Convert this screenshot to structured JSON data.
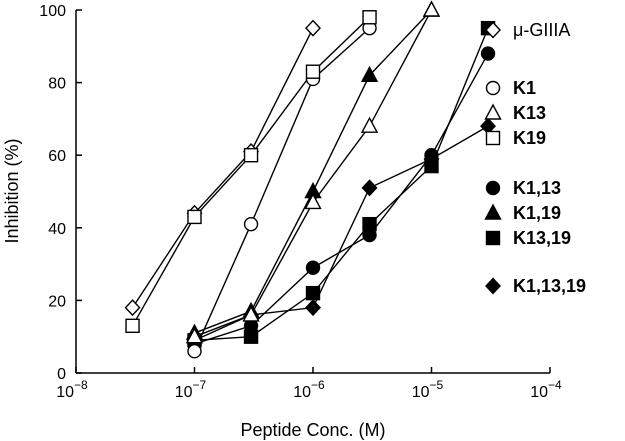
{
  "chart_data": {
    "type": "line",
    "xlabel": "Peptide Conc. (M)",
    "ylabel": "Inhibition (%)",
    "xscale": "log",
    "xlim": [
      1e-08,
      0.0001
    ],
    "ylim": [
      0,
      100
    ],
    "grid": false,
    "legend_position": "right",
    "x_ticks": [
      {
        "value": 1e-08,
        "base": "10",
        "exp": "−8"
      },
      {
        "value": 1e-07,
        "base": "10",
        "exp": "−7"
      },
      {
        "value": 1e-06,
        "base": "10",
        "exp": "−6"
      },
      {
        "value": 1e-05,
        "base": "10",
        "exp": "−5"
      },
      {
        "value": 0.0001,
        "base": "10",
        "exp": "−4"
      }
    ],
    "y_ticks": [
      {
        "value": 0,
        "label": "0"
      },
      {
        "value": 20,
        "label": "20"
      },
      {
        "value": 40,
        "label": "40"
      },
      {
        "value": 60,
        "label": "60"
      },
      {
        "value": 80,
        "label": "80"
      },
      {
        "value": 100,
        "label": "100"
      }
    ],
    "series": [
      {
        "name": "μ-GIIIA",
        "marker": "diamond",
        "filled": false,
        "bold": false,
        "x": [
          3e-08,
          1e-07,
          3e-07,
          1e-06
        ],
        "y": [
          18,
          44,
          61,
          95
        ]
      },
      {
        "name": "K1",
        "marker": "circle",
        "filled": false,
        "bold": true,
        "x": [
          1e-07,
          3e-07,
          1e-06,
          3e-06
        ],
        "y": [
          6,
          41,
          81,
          95
        ]
      },
      {
        "name": "K13",
        "marker": "triangle",
        "filled": false,
        "bold": true,
        "x": [
          1e-07,
          3e-07,
          1e-06,
          3e-06,
          1e-05
        ],
        "y": [
          10,
          16,
          47,
          68,
          100
        ]
      },
      {
        "name": "K19",
        "marker": "square",
        "filled": false,
        "bold": true,
        "x": [
          3e-08,
          1e-07,
          3e-07,
          1e-06,
          3e-06
        ],
        "y": [
          13,
          43,
          60,
          83,
          98
        ]
      },
      {
        "name": "K1,13",
        "marker": "circle",
        "filled": true,
        "bold": true,
        "x": [
          1e-07,
          3e-07,
          1e-06,
          3e-06,
          1e-05,
          3e-05
        ],
        "y": [
          8,
          13,
          29,
          38,
          60,
          88
        ]
      },
      {
        "name": "K1,19",
        "marker": "triangle",
        "filled": true,
        "bold": true,
        "x": [
          1e-07,
          3e-07,
          1e-06,
          3e-06,
          1e-05
        ],
        "y": [
          11,
          17,
          50,
          82,
          100
        ]
      },
      {
        "name": "K13,19",
        "marker": "square",
        "filled": true,
        "bold": true,
        "x": [
          1e-07,
          3e-07,
          1e-06,
          3e-06,
          1e-05,
          3e-05
        ],
        "y": [
          9,
          10,
          22,
          41,
          57,
          95
        ]
      },
      {
        "name": "K1,13,19",
        "marker": "diamond",
        "filled": true,
        "bold": true,
        "x": [
          1e-07,
          3e-07,
          1e-06,
          3e-06,
          1e-05,
          3e-05
        ],
        "y": [
          9,
          16,
          18,
          51,
          59,
          68
        ]
      }
    ]
  }
}
